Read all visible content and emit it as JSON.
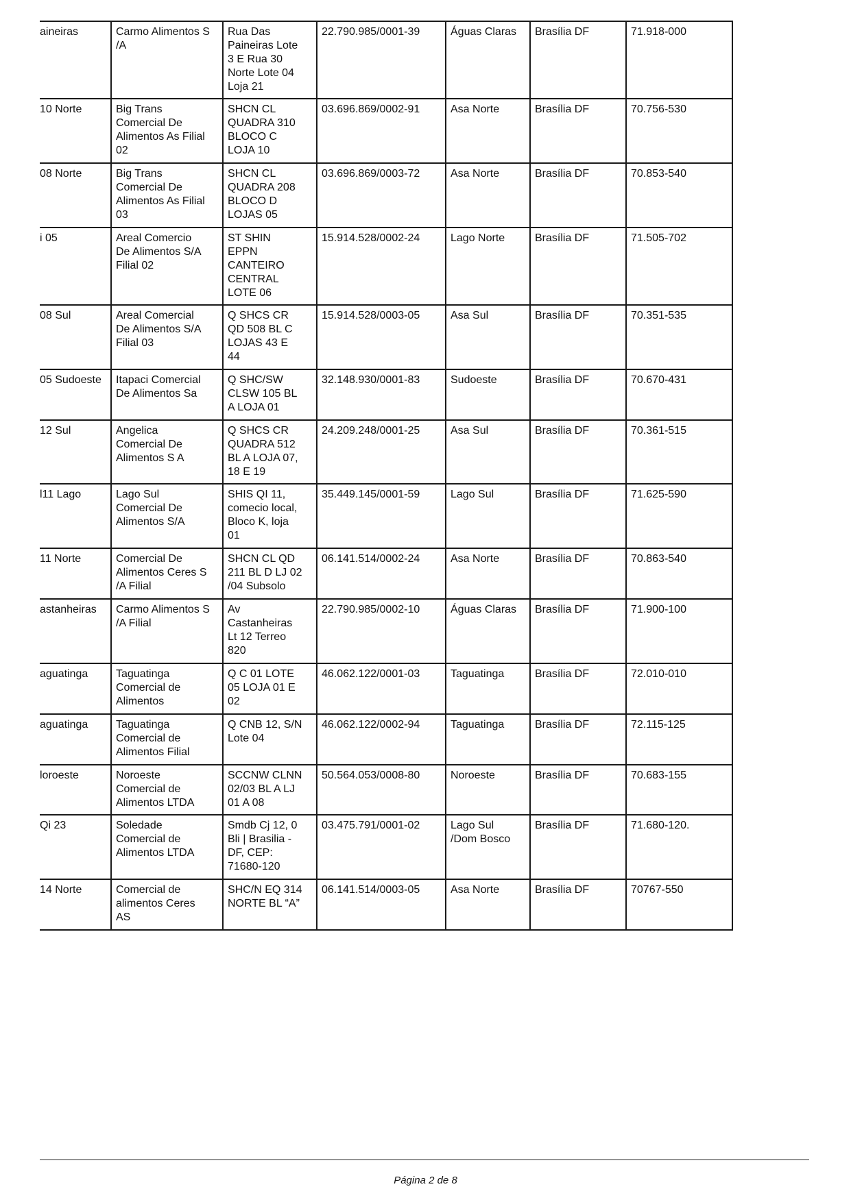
{
  "table": {
    "rows": [
      [
        "aineiras",
        "Carmo Alimentos S\n/A",
        "Rua Das\nPaineiras Lote\n3 E Rua 30\nNorte Lote 04\nLoja 21",
        "22.790.985/0001-39",
        "Águas Claras",
        "Brasília DF",
        "71.918-000"
      ],
      [
        "10 Norte",
        "Big Trans\nComercial De\nAlimentos As Filial\n02",
        "SHCN CL\nQUADRA 310\nBLOCO C\nLOJA 10",
        "03.696.869/0002-91",
        "Asa Norte",
        "Brasília DF",
        "70.756-530"
      ],
      [
        "08 Norte",
        "Big Trans\nComercial De\nAlimentos As Filial\n03",
        "SHCN CL\nQUADRA 208\nBLOCO D\nLOJAS 05",
        "03.696.869/0003-72",
        "Asa Norte",
        "Brasília DF",
        "70.853-540"
      ],
      [
        "i 05",
        "Areal Comercio\nDe Alimentos S/A\nFilial 02",
        "ST SHIN\nEPPN\nCANTEIRO\nCENTRAL\nLOTE 06",
        "15.914.528/0002-24",
        "Lago Norte",
        "Brasília DF",
        "71.505-702"
      ],
      [
        "08 Sul",
        "Areal Comercial\nDe Alimentos S/A\nFilial 03",
        "Q SHCS CR\nQD 508 BL C\nLOJAS 43 E\n44",
        "15.914.528/0003-05",
        "Asa Sul",
        "Brasília DF",
        "70.351-535"
      ],
      [
        "05 Sudoeste",
        "Itapaci Comercial\nDe Alimentos Sa",
        "Q SHC/SW\nCLSW 105 BL\nA LOJA 01",
        "32.148.930/0001-83",
        "Sudoeste",
        "Brasília DF",
        "70.670-431"
      ],
      [
        "12 Sul",
        "Angelica\nComercial De\nAlimentos S A",
        "Q SHCS CR\nQUADRA 512\nBL A LOJA 07,\n18 E 19",
        "24.209.248/0001-25",
        "Asa Sul",
        "Brasília DF",
        "70.361-515"
      ],
      [
        "l11 Lago",
        "Lago Sul\nComercial De\nAlimentos S/A",
        "SHIS QI 11,\ncomecio local,\nBloco K, loja\n01",
        "35.449.145/0001-59",
        "Lago Sul",
        "Brasília DF",
        "71.625-590"
      ],
      [
        "11 Norte",
        "Comercial De\nAlimentos Ceres S\n/A Filial",
        "SHCN CL QD\n211 BL D LJ 02\n/04 Subsolo",
        "06.141.514/0002-24",
        "Asa Norte",
        "Brasília DF",
        "70.863-540"
      ],
      [
        "astanheiras",
        "Carmo Alimentos S\n/A Filial",
        "Av\nCastanheiras\nLt 12 Terreo\n820",
        "22.790.985/0002-10",
        "Águas Claras",
        "Brasília DF",
        "71.900-100"
      ],
      [
        "aguatinga",
        "Taguatinga\nComercial de\nAlimentos",
        "Q C 01 LOTE\n05 LOJA 01 E\n02",
        "46.062.122/0001-03",
        "Taguatinga",
        "Brasília DF",
        "72.010-010"
      ],
      [
        "aguatinga",
        "Taguatinga\nComercial de\nAlimentos Filial",
        "Q CNB 12, S/N\nLote 04",
        "46.062.122/0002-94",
        "Taguatinga",
        "Brasília DF",
        "72.115-125"
      ],
      [
        "loroeste",
        "Noroeste\nComercial de\nAlimentos LTDA",
        "SCCNW CLNN\n02/03 BL A LJ\n01 A 08",
        "50.564.053/0008-80",
        "Noroeste",
        "Brasília DF",
        "70.683-155"
      ],
      [
        "Qi 23",
        "Soledade\nComercial de\nAlimentos LTDA",
        "Smdb Cj 12, 0\nBli | Brasilia -\nDF, CEP:\n71680-120",
        "03.475.791/0001-02",
        "Lago Sul\n/Dom Bosco",
        "Brasília DF",
        "71.680-120."
      ],
      [
        "14 Norte",
        "Comercial de\nalimentos Ceres\nAS",
        "SHC/N EQ 314\nNORTE BL “A”",
        "06.141.514/0003-05",
        "Asa Norte",
        "Brasília DF",
        "70767-550"
      ]
    ]
  },
  "footer": {
    "page_label": "Página 2 de 8"
  }
}
